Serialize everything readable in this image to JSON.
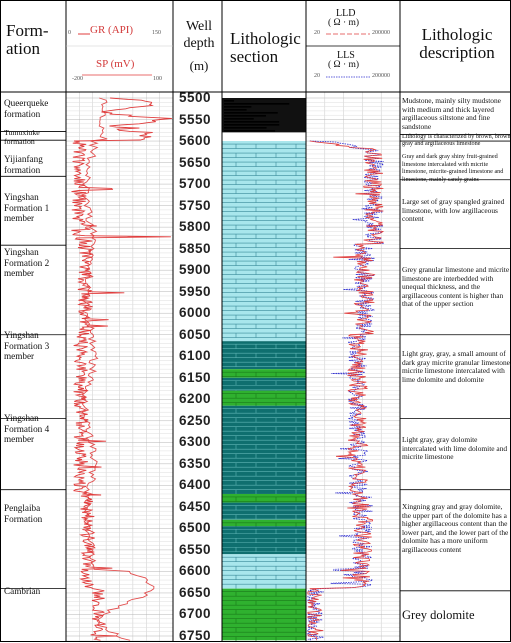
{
  "headers": {
    "formation": "Form-\nation",
    "gr": "GR (API)",
    "gr_min": "0",
    "gr_max": "150",
    "sp": "SP (mV)",
    "sp_min": "-200",
    "sp_max": "100",
    "well_depth": "Well\ndepth",
    "depth_unit": "(m)",
    "lithologic_section": "Lithologic\nsection",
    "lld": "LLD",
    "lld_unit": "( Ω · m)",
    "lld_min": "20",
    "lld_max": "200000",
    "lls": "LLS",
    "lls_unit": "( Ω · m)",
    "lls_min": "20",
    "lls_max": "200000",
    "lithologic_description": "Lithologic\ndescription"
  },
  "depth_ticks": [
    "5500",
    "5550",
    "5600",
    "5650",
    "5700",
    "5750",
    "5800",
    "5850",
    "5900",
    "5950",
    "6000",
    "6050",
    "6100",
    "6150",
    "6200",
    "6250",
    "6300",
    "6350",
    "6400",
    "6450",
    "6500",
    "6550",
    "6600",
    "6650",
    "6700",
    "6750"
  ],
  "formations": [
    {
      "name": "Queerqueke formation",
      "top_m": 5500,
      "bottom_m": 5575
    },
    {
      "name": "Tumuxiuke formation",
      "top_m": 5575,
      "bottom_m": 5600
    },
    {
      "name": "Yijianfang formation",
      "top_m": 5600,
      "bottom_m": 5680
    },
    {
      "name": "Yingshan Formation 1 member",
      "top_m": 5680,
      "bottom_m": 5840
    },
    {
      "name": "Yingshan Formation 2 member",
      "top_m": 5840,
      "bottom_m": 6050
    },
    {
      "name": "Yingshan Formation 3 member",
      "top_m": 6050,
      "bottom_m": 6245
    },
    {
      "name": "Yingshan Formation 4 member",
      "top_m": 6245,
      "bottom_m": 6410
    },
    {
      "name": "Penglaiba Formation",
      "top_m": 6410,
      "bottom_m": 6640
    },
    {
      "name": "Cambrian",
      "top_m": 6640,
      "bottom_m": 6760
    }
  ],
  "descriptions": [
    "Mudstone, mainly silty mudstone with medium and thick layered argillaceous siltstone and fine sandstone",
    "Lithology is characterized by brown, brown gray and argillaceous limestone",
    "Gray and dark gray shiny fruit-grained limestone intercalated with micrite limestone, micrite-grained limestone and limestone, mainly sandy grains",
    "Large set of gray spangled grained limestone, with low argillaceous content",
    "Grey granular limestone and micrite limestone are interbedded with unequal thickness, and the argillaceous content is higher than that of the upper section",
    "Light gray, gray, a small amount of dark gray micrite granular limestone, micrite limestone intercalated with lime dolomite and dolomite",
    "Light gray, gray dolomite intercalated with lime dolomite and micrite limestone",
    "Xingning gray and gray dolomite, the upper part of the dolomite has a higher argillaceous content than the lower part, and the lower part of the dolomite has a more uniform argillaceous content",
    "Grey dolomite"
  ],
  "lithology_units": [
    {
      "lithology": "mudstone / sandstone",
      "top_m": 5500,
      "bottom_m": 5580,
      "color": "#111111"
    },
    {
      "lithology": "argillaceous limestone",
      "top_m": 5580,
      "bottom_m": 5600,
      "color": "#ffffff"
    },
    {
      "lithology": "limestone",
      "top_m": 5600,
      "bottom_m": 6065,
      "color": "#a8e6ec"
    },
    {
      "lithology": "dolomitic limestone",
      "top_m": 6065,
      "bottom_m": 6130,
      "color": "#0f6f6f"
    },
    {
      "lithology": "dolomite",
      "top_m": 6130,
      "bottom_m": 6150,
      "color": "#2fb12f"
    },
    {
      "lithology": "dolomitic limestone",
      "top_m": 6150,
      "bottom_m": 6180,
      "color": "#0f6f6f"
    },
    {
      "lithology": "dolomite",
      "top_m": 6180,
      "bottom_m": 6215,
      "color": "#2fb12f"
    },
    {
      "lithology": "dolomitic limestone",
      "top_m": 6215,
      "bottom_m": 6420,
      "color": "#0f6f6f"
    },
    {
      "lithology": "dolomite",
      "top_m": 6420,
      "bottom_m": 6440,
      "color": "#2fb12f"
    },
    {
      "lithology": "dolomitic limestone",
      "top_m": 6440,
      "bottom_m": 6480,
      "color": "#0f6f6f"
    },
    {
      "lithology": "dolomite",
      "top_m": 6480,
      "bottom_m": 6495,
      "color": "#2fb12f"
    },
    {
      "lithology": "dolomitic limestone",
      "top_m": 6495,
      "bottom_m": 6560,
      "color": "#0f6f6f"
    },
    {
      "lithology": "limestone",
      "top_m": 6560,
      "bottom_m": 6640,
      "color": "#a8e6ec"
    },
    {
      "lithology": "dolomite",
      "top_m": 6640,
      "bottom_m": 6760,
      "color": "#2fb12f"
    }
  ],
  "colors": {
    "gr_curve": "#e03c3c",
    "sp_curve": "#e03c3c",
    "lld_curve": "#e03c3c",
    "lls_curve": "#2c2cd0",
    "border": "#000000"
  }
}
